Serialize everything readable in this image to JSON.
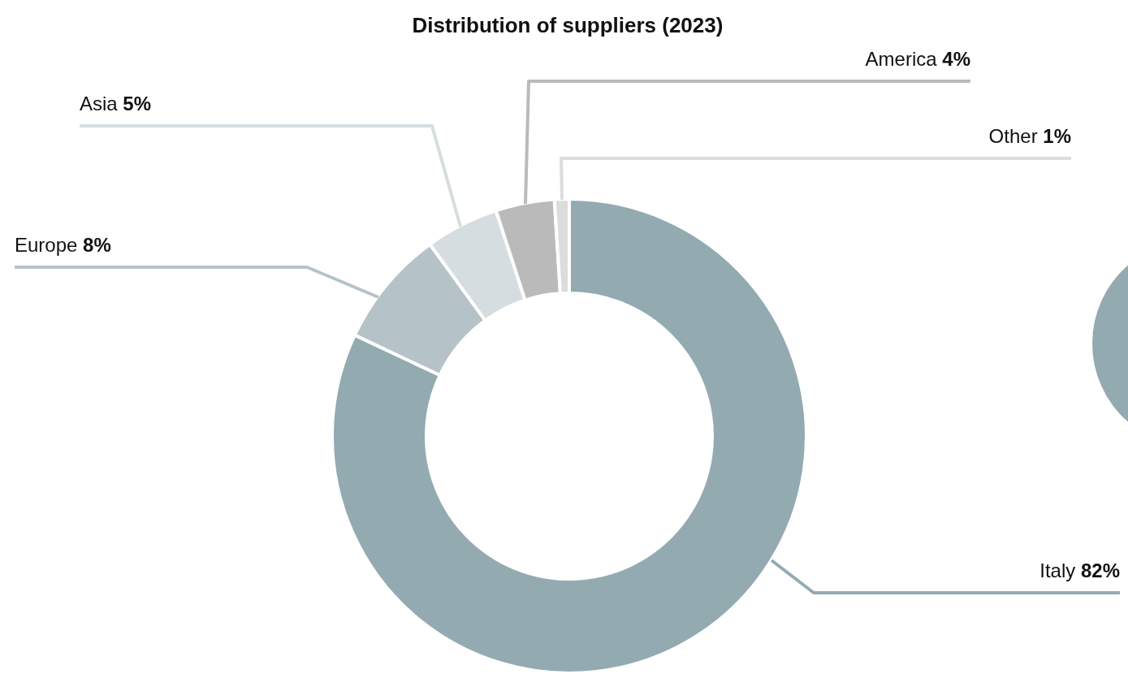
{
  "chart_data": {
    "type": "donut",
    "title": "Distribution of suppliers (2023)",
    "categories": [
      "Italy",
      "Europe",
      "Asia",
      "America",
      "Other"
    ],
    "values": [
      82,
      8,
      5,
      4,
      1
    ],
    "colors": [
      "#93aab1",
      "#b5c3c8",
      "#d5dde0",
      "#bababa",
      "#dcdcdc"
    ],
    "value_labels": [
      "82%",
      "8%",
      "5%",
      "4%",
      "1%"
    ]
  }
}
